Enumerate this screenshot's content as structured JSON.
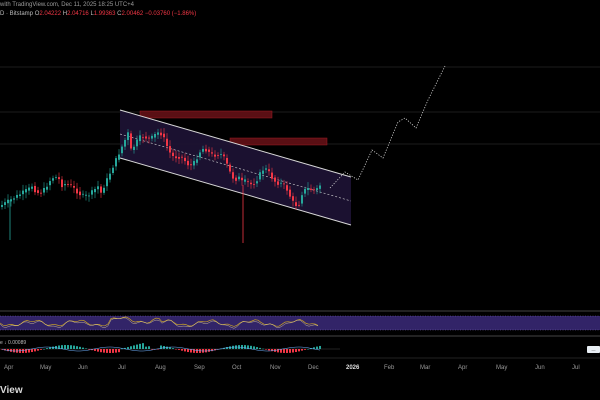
{
  "header": {
    "line1": "with TradingView.com, Dec 11, 2025 18:25 UTC+4",
    "symbol": "D · Bitstamp",
    "ohlc": [
      {
        "label": "O",
        "value": "2.04222"
      },
      {
        "label": "H",
        "value": "2.04716"
      },
      {
        "label": "L",
        "value": "1.99363"
      },
      {
        "label": "C",
        "value": "2.00462"
      }
    ],
    "change": "−0.03760 (−1.86%)"
  },
  "macd_label": "e  ↓ 0.00089",
  "footer_logo": "View",
  "badge": "—",
  "colors": {
    "up": "#26a69a",
    "down": "#f23645",
    "channel_fill": "#1c1233",
    "channel_line": "#d8d8d8",
    "zone": "#5a0f14",
    "rsi_band": "#3b2a7a",
    "rsi_line": "#c9a227",
    "projection": "#d0d0d0"
  },
  "chart_data": {
    "type": "candlestick",
    "x_ticks": [
      "Apr",
      "May",
      "Jun",
      "Jul",
      "Aug",
      "Sep",
      "Oct",
      "Nov",
      "Dec",
      "2026",
      "Feb",
      "Mar",
      "Apr",
      "May",
      "Jun",
      "Jul"
    ],
    "strong_tick": "2026",
    "channel": {
      "upper": [
        [
          0.0,
          1.0
        ],
        [
          1.0,
          0.0
        ]
      ],
      "lower": [
        [
          0.0,
          0.25
        ],
        [
          1.0,
          -0.8
        ]
      ],
      "mid": [
        [
          0.0,
          0.62
        ],
        [
          1.0,
          -0.4
        ]
      ]
    },
    "candles": [
      [
        -4,
        -1.2
      ],
      [
        -3.9,
        -1.0
      ],
      [
        -3.8,
        -1.5
      ],
      [
        -3.7,
        -1.3
      ],
      [
        -3.6,
        -0.9
      ],
      [
        -3.5,
        -1.1
      ],
      [
        -3.4,
        -0.7
      ],
      [
        -3.3,
        -0.8
      ],
      [
        -3.2,
        -0.5
      ],
      [
        -3.1,
        -0.6
      ],
      [
        -3.0,
        -0.3
      ],
      [
        -2.9,
        -0.4
      ],
      [
        -2.8,
        -0.6
      ],
      [
        -2.7,
        -0.5
      ],
      [
        -2.6,
        -0.8
      ],
      [
        -2.5,
        -0.7
      ],
      [
        -2.4,
        -0.9
      ],
      [
        -2.3,
        -0.6
      ],
      [
        -2.2,
        -0.5
      ],
      [
        -2.1,
        -0.7
      ],
      [
        -2.0,
        -0.6
      ]
    ],
    "rsi": "series shown as wavy line within band",
    "macd": "histogram near zero"
  }
}
